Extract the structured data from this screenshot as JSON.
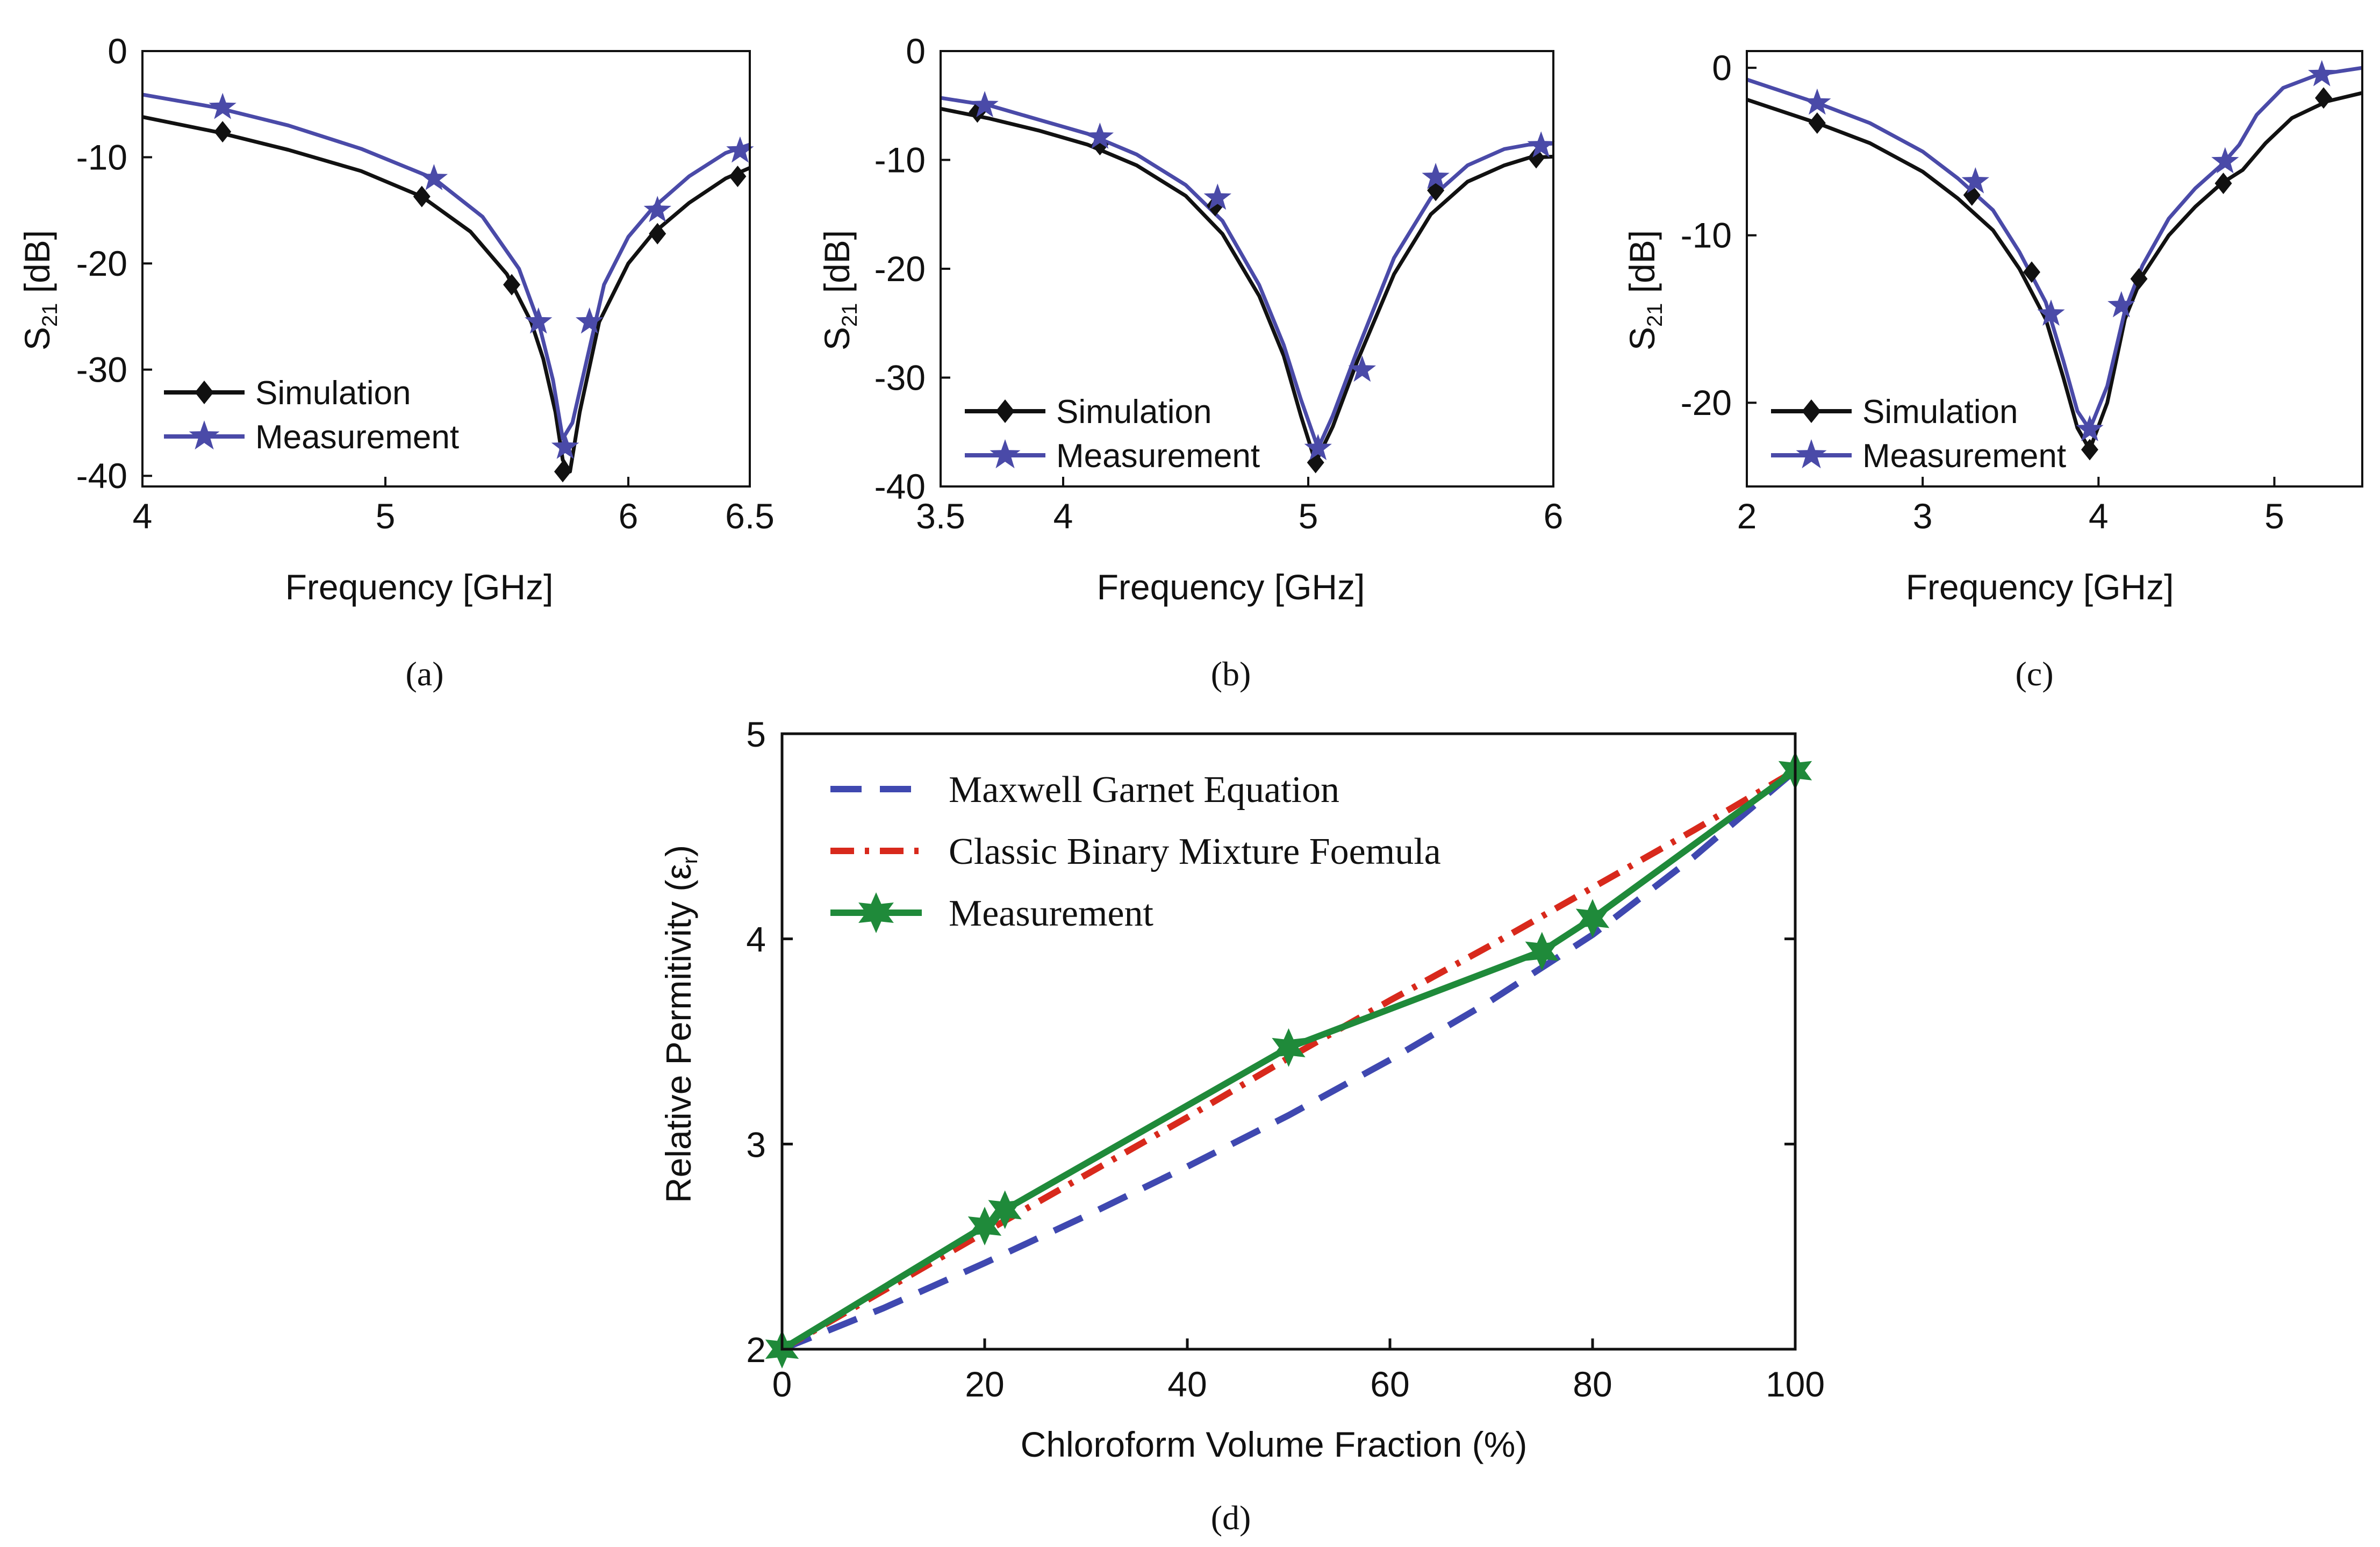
{
  "figure": {
    "panels": [
      {
        "id": "a",
        "caption": "(a)"
      },
      {
        "id": "b",
        "caption": "(b)"
      },
      {
        "id": "c",
        "caption": "(c)"
      },
      {
        "id": "d",
        "caption": "(d)"
      }
    ]
  },
  "colors": {
    "simulation": "#111111",
    "measurement_s21": "#4a4aa8",
    "maxwell_garnet": "#3f48b0",
    "binary_mixture": "#d8291c",
    "measurement_perm": "#1f8a3a"
  },
  "chart_data": [
    {
      "id": "a",
      "type": "line",
      "title": "",
      "xlabel": "Frequency [GHz]",
      "ylabel_main": "S",
      "ylabel_sub": "21",
      "ylabel_unit": " [dB]",
      "xlim": [
        4,
        6.5
      ],
      "ylim": [
        -41,
        0
      ],
      "xticks": [
        4,
        5,
        6,
        6.5
      ],
      "xtick_labels": [
        "4",
        "5",
        "6",
        "6.5"
      ],
      "yticks": [
        0,
        -10,
        -20,
        -30,
        -40
      ],
      "ytick_labels": [
        "0",
        "-10",
        "-20",
        "-30",
        "-40"
      ],
      "legend_position": "bottom-left",
      "series": [
        {
          "name": "Simulation",
          "marker": "diamond",
          "curve_x": [
            4.0,
            4.3,
            4.6,
            4.9,
            5.15,
            5.35,
            5.5,
            5.6,
            5.65,
            5.7,
            5.73,
            5.76,
            5.8,
            5.88,
            6.0,
            6.1,
            6.25,
            6.4,
            6.5
          ],
          "curve_y": [
            -6.2,
            -7.6,
            -9.3,
            -11.3,
            -13.7,
            -17.0,
            -21.0,
            -25.5,
            -29.0,
            -34.0,
            -38.5,
            -39.6,
            -34.0,
            -25.5,
            -20.0,
            -17.2,
            -14.3,
            -12.0,
            -11.0
          ],
          "marker_x": [
            4.33,
            5.15,
            5.52,
            5.73,
            6.12,
            6.45
          ],
          "marker_y": [
            -7.6,
            -13.7,
            -22.0,
            -39.6,
            -17.2,
            -11.8
          ]
        },
        {
          "name": "Measurement",
          "marker": "star",
          "curve_x": [
            4.0,
            4.3,
            4.6,
            4.9,
            5.2,
            5.4,
            5.55,
            5.63,
            5.69,
            5.73,
            5.77,
            5.82,
            5.9,
            6.0,
            6.1,
            6.25,
            6.4,
            6.5
          ],
          "curve_y": [
            -4.1,
            -5.3,
            -7.0,
            -9.2,
            -12.0,
            -15.6,
            -20.5,
            -25.5,
            -31.0,
            -36.5,
            -35.0,
            -30.0,
            -22.0,
            -17.5,
            -14.8,
            -11.8,
            -9.6,
            -8.8
          ],
          "marker_x": [
            4.33,
            5.2,
            5.63,
            5.74,
            5.84,
            6.12,
            6.46
          ],
          "marker_y": [
            -5.3,
            -12.0,
            -25.5,
            -37.3,
            -25.5,
            -15.0,
            -9.4
          ]
        }
      ]
    },
    {
      "id": "b",
      "type": "line",
      "title": "",
      "xlabel": "Frequency [GHz]",
      "ylabel_main": "S",
      "ylabel_sub": "21",
      "ylabel_unit": " [dB]",
      "xlim": [
        3.5,
        6
      ],
      "ylim": [
        -40,
        0
      ],
      "xticks": [
        3.5,
        4,
        5,
        6
      ],
      "xtick_labels": [
        "3.5",
        "4",
        "5",
        "6"
      ],
      "yticks": [
        0,
        -10,
        -20,
        -30,
        -40
      ],
      "ytick_labels": [
        "0",
        "-10",
        "-20",
        "-30",
        "-40"
      ],
      "legend_position": "bottom-left",
      "series": [
        {
          "name": "Simulation",
          "marker": "diamond",
          "curve_x": [
            3.5,
            3.7,
            3.9,
            4.1,
            4.3,
            4.5,
            4.65,
            4.8,
            4.9,
            4.97,
            5.03,
            5.1,
            5.2,
            5.35,
            5.5,
            5.65,
            5.8,
            5.9,
            6.0
          ],
          "curve_y": [
            -5.3,
            -6.2,
            -7.3,
            -8.6,
            -10.5,
            -13.3,
            -16.8,
            -22.5,
            -28.0,
            -33.5,
            -37.8,
            -34.5,
            -28.5,
            -20.5,
            -15.0,
            -12.0,
            -10.5,
            -9.8,
            -9.7
          ],
          "marker_x": [
            3.65,
            4.15,
            4.62,
            5.03,
            5.52,
            5.93
          ],
          "marker_y": [
            -5.6,
            -8.6,
            -14.2,
            -37.8,
            -12.8,
            -9.8
          ]
        },
        {
          "name": "Measurement",
          "marker": "star",
          "curve_x": [
            3.5,
            3.7,
            3.9,
            4.1,
            4.3,
            4.5,
            4.65,
            4.8,
            4.9,
            4.97,
            5.04,
            5.1,
            5.2,
            5.35,
            5.5,
            5.65,
            5.8,
            5.9,
            6.0
          ],
          "curve_y": [
            -4.3,
            -5.0,
            -6.3,
            -7.6,
            -9.5,
            -12.3,
            -15.6,
            -21.5,
            -27.0,
            -32.0,
            -36.5,
            -33.5,
            -27.5,
            -19.0,
            -13.5,
            -10.5,
            -9.0,
            -8.6,
            -8.5
          ],
          "marker_x": [
            3.68,
            4.15,
            4.63,
            5.04,
            5.22,
            5.52,
            5.95
          ],
          "marker_y": [
            -5.0,
            -7.9,
            -13.5,
            -36.5,
            -29.3,
            -11.6,
            -8.7
          ]
        }
      ]
    },
    {
      "id": "c",
      "type": "line",
      "title": "",
      "xlabel": "Frequency [GHz]",
      "ylabel_main": "S",
      "ylabel_sub": "21",
      "ylabel_unit": " [dB]",
      "xlim": [
        2,
        5.5
      ],
      "ylim": [
        -25,
        1
      ],
      "xticks": [
        2,
        3,
        4,
        5
      ],
      "xtick_labels": [
        "2",
        "3",
        "4",
        "5"
      ],
      "yticks": [
        0,
        -10,
        -20
      ],
      "ytick_labels": [
        "0",
        "-10",
        "-20"
      ],
      "legend_position": "bottom-left",
      "series": [
        {
          "name": "Simulation",
          "marker": "diamond",
          "curve_x": [
            2.0,
            2.2,
            2.4,
            2.7,
            3.0,
            3.2,
            3.4,
            3.55,
            3.7,
            3.8,
            3.88,
            3.95,
            4.05,
            4.15,
            4.25,
            4.4,
            4.55,
            4.7,
            4.82,
            4.95,
            5.1,
            5.3,
            5.5
          ],
          "curve_y": [
            -1.9,
            -2.6,
            -3.3,
            -4.5,
            -6.2,
            -7.8,
            -9.7,
            -12.0,
            -15.0,
            -18.5,
            -21.5,
            -22.8,
            -20.0,
            -15.0,
            -12.4,
            -10.0,
            -8.3,
            -6.9,
            -6.1,
            -4.5,
            -3.0,
            -2.0,
            -1.5
          ],
          "marker_x": [
            2.4,
            3.28,
            3.62,
            3.95,
            4.23,
            4.71,
            5.28
          ],
          "marker_y": [
            -3.3,
            -7.6,
            -12.2,
            -22.8,
            -12.6,
            -6.9,
            -1.8
          ]
        },
        {
          "name": "Measurement",
          "marker": "star",
          "curve_x": [
            2.0,
            2.2,
            2.4,
            2.7,
            3.0,
            3.2,
            3.4,
            3.55,
            3.7,
            3.8,
            3.88,
            3.95,
            4.05,
            4.15,
            4.25,
            4.4,
            4.55,
            4.7,
            4.8,
            4.9,
            5.05,
            5.25,
            5.5
          ],
          "curve_y": [
            -0.7,
            -1.4,
            -2.1,
            -3.3,
            -5.0,
            -6.6,
            -8.5,
            -11.0,
            -14.0,
            -17.5,
            -20.5,
            -21.6,
            -19.0,
            -14.5,
            -11.8,
            -9.0,
            -7.2,
            -5.8,
            -4.6,
            -2.8,
            -1.2,
            -0.4,
            0.0
          ],
          "marker_x": [
            2.4,
            3.3,
            3.73,
            3.95,
            4.13,
            4.72,
            5.27
          ],
          "marker_y": [
            -2.1,
            -6.8,
            -14.7,
            -21.6,
            -14.2,
            -5.6,
            -0.4
          ]
        }
      ]
    },
    {
      "id": "d",
      "type": "line",
      "title": "",
      "xlabel": "Chloroform Volume Fraction (%)",
      "ylabel": "Relative Permitivity (ε",
      "ylabel_sub": "r",
      "ylabel_close": ")",
      "xlim": [
        0,
        100
      ],
      "ylim": [
        2,
        5
      ],
      "xticks": [
        0,
        20,
        40,
        60,
        80,
        100
      ],
      "xtick_labels": [
        "0",
        "20",
        "40",
        "60",
        "80",
        "100"
      ],
      "yticks": [
        2,
        3,
        4,
        5
      ],
      "ytick_labels": [
        "2",
        "3",
        "4",
        "5"
      ],
      "legend_position": "top-left",
      "series": [
        {
          "name": "Maxwell Garnet Equation",
          "style": "dashed",
          "x": [
            0,
            10,
            20,
            30,
            40,
            50,
            60,
            70,
            80,
            90,
            100
          ],
          "y": [
            2.0,
            2.2,
            2.42,
            2.65,
            2.89,
            3.14,
            3.41,
            3.7,
            4.02,
            4.4,
            4.82
          ]
        },
        {
          "name": "Classic Binary Mixture Foemula",
          "style": "dashdot",
          "x": [
            0,
            20,
            40,
            50,
            60,
            70,
            80,
            90,
            100
          ],
          "y": [
            2.0,
            2.57,
            3.13,
            3.42,
            3.7,
            3.97,
            4.25,
            4.53,
            4.82
          ]
        },
        {
          "name": "Measurement",
          "style": "solid",
          "marker": "star",
          "x": [
            0,
            20,
            22,
            50,
            75,
            80,
            100
          ],
          "y": [
            2.0,
            2.6,
            2.68,
            3.47,
            3.94,
            4.1,
            4.82
          ]
        }
      ]
    }
  ]
}
